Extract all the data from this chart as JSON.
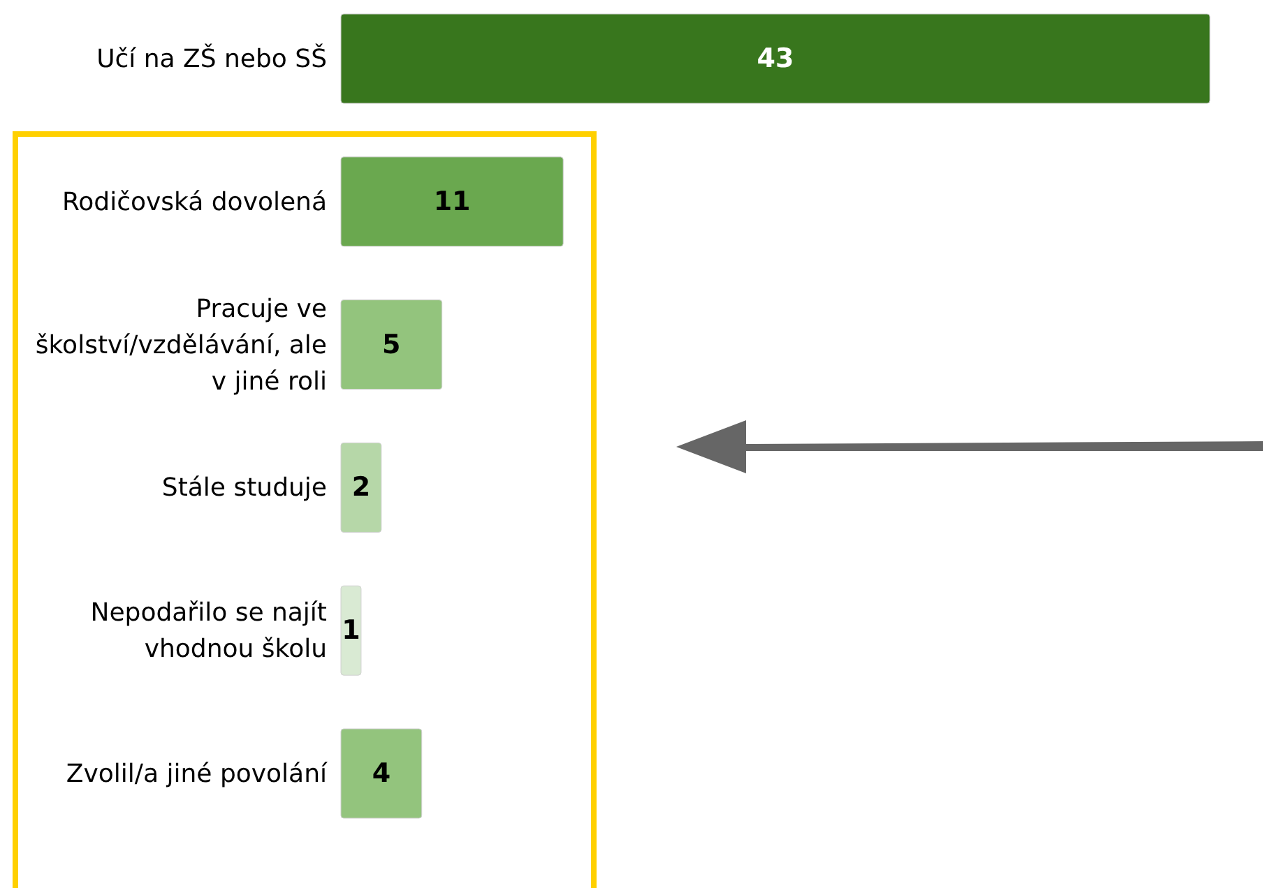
{
  "chart_data": {
    "type": "bar",
    "orientation": "horizontal",
    "categories": [
      "Učí na ZŠ nebo SŠ",
      "Rodičovská dovolená",
      "Pracuje ve školství/vzdělávání, ale v jiné roli",
      "Stále studuje",
      "Nepodařilo se najít vhodnou školu",
      "Zvolil/a jiné povolání"
    ],
    "values": [
      43,
      11,
      5,
      2,
      1,
      4
    ],
    "colors": [
      "#38761d",
      "#6aa84f",
      "#93c47d",
      "#b6d7a8",
      "#d9ead3",
      "#93c47d"
    ],
    "data_labels": true
  }
}
